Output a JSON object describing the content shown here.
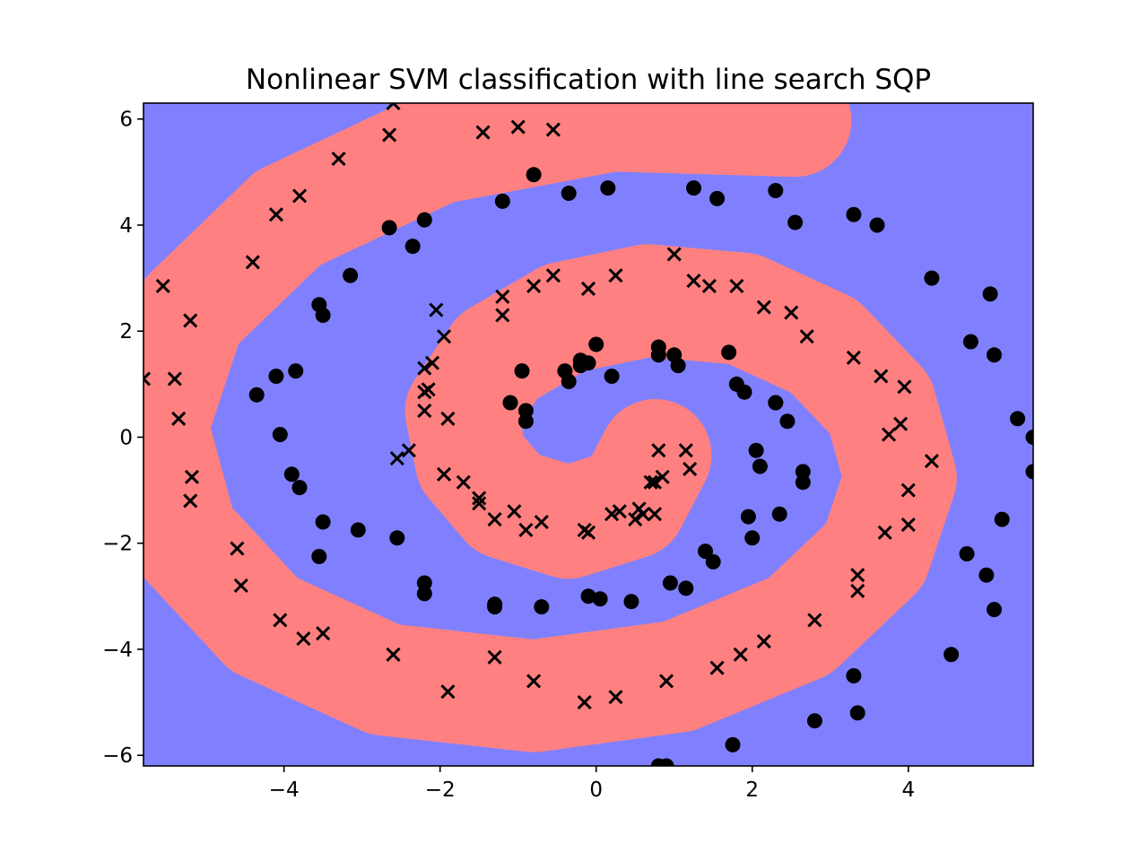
{
  "chart_data": {
    "type": "scatter",
    "title": "Nonlinear SVM classification with line search SQP",
    "xlabel": "",
    "ylabel": "",
    "xlim": [
      -5.8,
      5.6
    ],
    "ylim": [
      -6.2,
      6.3
    ],
    "xticks": [
      -4,
      -2,
      0,
      2,
      4
    ],
    "xtick_labels": [
      "−4",
      "−2",
      "0",
      "2",
      "4"
    ],
    "yticks": [
      -6,
      -4,
      -2,
      0,
      2,
      4,
      6
    ],
    "ytick_labels": [
      "−6",
      "−4",
      "−2",
      "0",
      "2",
      "4",
      "6"
    ],
    "grid": false,
    "legend": false,
    "colors": {
      "region_positive": "#ff8080",
      "region_negative": "#8080ff",
      "markers": "#000000"
    },
    "regions": {
      "description_of_classes": [
        "x-marker class region",
        "o-marker class region"
      ],
      "positive_class_arm_points": [
        [
          0.76,
          -0.34
        ],
        [
          0.44,
          -1.24
        ],
        [
          -0.36,
          -1.61
        ],
        [
          -1.14,
          -1.25
        ],
        [
          -1.6,
          -0.46
        ],
        [
          -1.73,
          0.49
        ],
        [
          -1.26,
          1.52
        ],
        [
          -0.41,
          2.25
        ],
        [
          0.66,
          2.58
        ],
        [
          1.88,
          2.42
        ],
        [
          2.92,
          1.72
        ],
        [
          3.64,
          0.61
        ],
        [
          3.9,
          -0.77
        ],
        [
          3.57,
          -2.22
        ],
        [
          2.61,
          -3.56
        ],
        [
          1.05,
          -4.51
        ],
        [
          -0.8,
          -4.88
        ],
        [
          -2.71,
          -4.57
        ],
        [
          -4.26,
          -3.53
        ],
        [
          -5.31,
          -1.86
        ],
        [
          -5.69,
          0.2
        ],
        [
          -5.21,
          2.34
        ],
        [
          -3.95,
          4.13
        ],
        [
          -2.05,
          5.45
        ],
        [
          0.2,
          6.07
        ],
        [
          2.55,
          5.97
        ]
      ],
      "band_half_width": 0.72
    },
    "series": [
      {
        "marker": "x",
        "x": [
          -5.8,
          -5.55,
          -5.2,
          -5.4,
          -5.35,
          -5.18,
          -5.2,
          -4.6,
          -4.55,
          -4.4,
          -4.1,
          -4.05,
          -3.8,
          -3.75,
          -3.5,
          -3.3,
          -2.65,
          -2.6,
          -2.2,
          -2.15,
          -2.2,
          -2.2,
          -2.1,
          -2.05,
          -1.95,
          -1.9,
          -1.95,
          -1.5,
          -1.2,
          -1.2,
          -0.8,
          -0.55,
          -1.7,
          -1.5,
          -1.3,
          -1.05,
          -0.9,
          -0.7,
          -0.15,
          -0.1,
          0.2,
          0.3,
          0.5,
          0.55,
          0.6,
          0.75,
          0.75,
          0.85,
          0.8,
          1.15,
          1.2,
          1.0,
          1.25,
          1.45,
          1.8,
          2.15,
          2.5,
          2.7,
          3.3,
          3.65,
          3.75,
          3.95,
          3.9,
          4.0,
          4.3,
          3.7,
          4.0,
          3.35,
          3.35,
          2.8,
          2.15,
          1.85,
          1.55,
          0.9,
          0.25,
          -0.15,
          -0.8,
          -1.3,
          -1.9,
          -2.6,
          0.25,
          -1.0,
          -0.1,
          -0.55,
          -1.45,
          -2.4,
          -2.55,
          0.7
        ],
        "y": [
          1.1,
          2.85,
          2.2,
          1.1,
          0.35,
          -0.75,
          -1.2,
          -2.1,
          -2.8,
          3.3,
          4.2,
          -3.45,
          4.55,
          -3.8,
          -3.7,
          5.25,
          5.7,
          -4.1,
          1.3,
          0.9,
          0.5,
          0.85,
          1.4,
          2.4,
          1.9,
          0.35,
          -0.7,
          -1.25,
          2.65,
          2.3,
          2.85,
          3.05,
          -0.85,
          -1.15,
          -1.55,
          -1.4,
          -1.75,
          -1.6,
          -1.75,
          -1.8,
          -1.45,
          -1.4,
          -1.55,
          -1.35,
          -1.45,
          -1.45,
          -0.85,
          -0.75,
          -0.25,
          -0.25,
          -0.6,
          3.45,
          2.95,
          2.85,
          2.85,
          2.45,
          2.35,
          1.9,
          1.5,
          1.15,
          0.05,
          0.95,
          0.25,
          -1.0,
          -0.45,
          -1.8,
          -1.65,
          -2.6,
          -2.9,
          -3.45,
          -3.85,
          -4.1,
          -4.35,
          -4.6,
          -4.9,
          -5.0,
          -4.6,
          -4.15,
          -4.8,
          6.3,
          3.05,
          5.85,
          2.8,
          5.8,
          5.75,
          -0.25,
          -0.4,
          -0.85
        ],
        "name": ""
      },
      {
        "marker": "o",
        "x": [
          -0.2,
          0.0,
          -0.4,
          -0.35,
          -0.1,
          -0.2,
          -0.9,
          -0.9,
          -0.95,
          -1.1,
          0.2,
          0.8,
          0.8,
          1.0,
          1.05,
          1.7,
          1.9,
          1.8,
          2.05,
          2.3,
          2.3,
          2.45,
          2.65,
          2.65,
          2.1,
          2.35,
          1.95,
          2.0,
          1.5,
          1.4,
          1.15,
          0.95,
          0.45,
          0.05,
          -0.1,
          -0.7,
          -1.3,
          -1.3,
          -2.2,
          -2.2,
          -2.55,
          -3.05,
          -3.5,
          -3.55,
          -3.8,
          -3.9,
          -4.05,
          -4.1,
          -4.35,
          -3.85,
          -3.55,
          -3.5,
          -3.15,
          -2.65,
          -2.35,
          -2.2,
          -1.2,
          -0.8,
          -0.35,
          0.15,
          1.25,
          1.55,
          2.3,
          2.55,
          3.3,
          3.6,
          4.3,
          5.05,
          4.8,
          5.1,
          5.4,
          5.6,
          5.6,
          5.2,
          4.75,
          5.0,
          5.1,
          4.55,
          3.3,
          3.35,
          2.8,
          1.75,
          0.8,
          0.9
        ],
        "y": [
          1.45,
          1.75,
          1.25,
          1.05,
          1.4,
          1.35,
          0.5,
          0.3,
          1.25,
          0.65,
          1.15,
          1.7,
          1.55,
          1.55,
          1.35,
          1.6,
          0.85,
          1.0,
          -0.25,
          0.65,
          0.65,
          0.3,
          -0.65,
          -0.85,
          -0.55,
          -1.45,
          -1.5,
          -1.9,
          -2.35,
          -2.15,
          -2.85,
          -2.75,
          -3.1,
          -3.05,
          -3.0,
          -3.2,
          -3.2,
          -3.15,
          -2.75,
          -2.95,
          -1.9,
          -1.75,
          -1.6,
          -2.25,
          -0.95,
          -0.7,
          0.05,
          1.15,
          0.8,
          1.25,
          2.5,
          2.3,
          3.05,
          3.95,
          3.6,
          4.1,
          4.45,
          4.95,
          4.6,
          4.7,
          4.7,
          4.5,
          4.65,
          4.05,
          4.2,
          4.0,
          3.0,
          2.7,
          1.8,
          1.55,
          0.35,
          0.0,
          -0.65,
          -1.55,
          -2.2,
          -2.6,
          -3.25,
          -4.1,
          -4.5,
          -5.2,
          -5.35,
          -5.8,
          -6.2,
          -6.2
        ],
        "name": ""
      }
    ]
  }
}
